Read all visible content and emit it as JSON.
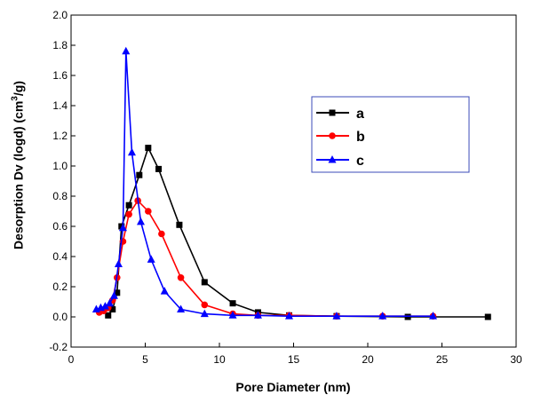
{
  "chart_data": {
    "type": "line",
    "xlabel": "Pore Diameter (nm)",
    "ylabel": {
      "main": "Desorption Dv (logd)  (cm",
      "sup": "3",
      "end": "/g)"
    },
    "xlim": [
      0,
      30
    ],
    "ylim": [
      -0.2,
      2.0
    ],
    "xticks": [
      0,
      5,
      10,
      15,
      20,
      25,
      30
    ],
    "yticks": [
      -0.2,
      0.0,
      0.2,
      0.4,
      0.6,
      0.8,
      1.0,
      1.2,
      1.4,
      1.6,
      1.8,
      2.0
    ],
    "xtick_labels": [
      "0",
      "5",
      "10",
      "15",
      "20",
      "25",
      "30"
    ],
    "ytick_labels": [
      "-0.2",
      "0.0",
      "0.2",
      "0.4",
      "0.6",
      "0.8",
      "1.0",
      "1.2",
      "1.4",
      "1.6",
      "1.8",
      "2.0"
    ],
    "grid": false,
    "legend_position": "upper-right",
    "series": [
      {
        "name": "a",
        "color": "#000000",
        "marker": "square",
        "points": [
          [
            2.5,
            0.01
          ],
          [
            2.8,
            0.05
          ],
          [
            3.1,
            0.16
          ],
          [
            3.4,
            0.6
          ],
          [
            3.9,
            0.74
          ],
          [
            4.6,
            0.94
          ],
          [
            5.2,
            1.12
          ],
          [
            5.9,
            0.98
          ],
          [
            7.3,
            0.61
          ],
          [
            9.0,
            0.23
          ],
          [
            10.9,
            0.09
          ],
          [
            12.6,
            0.03
          ],
          [
            14.7,
            0.01
          ],
          [
            17.9,
            0.005
          ],
          [
            22.7,
            0.0
          ],
          [
            28.1,
            0.0
          ]
        ]
      },
      {
        "name": "b",
        "color": "#ff0000",
        "marker": "circle",
        "points": [
          [
            1.9,
            0.03
          ],
          [
            2.2,
            0.04
          ],
          [
            2.5,
            0.06
          ],
          [
            2.8,
            0.11
          ],
          [
            3.1,
            0.26
          ],
          [
            3.5,
            0.5
          ],
          [
            3.9,
            0.68
          ],
          [
            4.5,
            0.77
          ],
          [
            5.2,
            0.7
          ],
          [
            6.1,
            0.55
          ],
          [
            7.4,
            0.26
          ],
          [
            9.0,
            0.08
          ],
          [
            10.9,
            0.02
          ],
          [
            12.6,
            0.01
          ],
          [
            14.7,
            0.01
          ],
          [
            17.9,
            0.005
          ],
          [
            21.0,
            0.005
          ],
          [
            24.4,
            0.005
          ]
        ]
      },
      {
        "name": "c",
        "color": "#0000ff",
        "marker": "triangle",
        "points": [
          [
            1.7,
            0.05
          ],
          [
            2.0,
            0.06
          ],
          [
            2.3,
            0.07
          ],
          [
            2.6,
            0.09
          ],
          [
            2.9,
            0.14
          ],
          [
            3.2,
            0.35
          ],
          [
            3.5,
            0.59
          ],
          [
            3.7,
            1.76
          ],
          [
            4.1,
            1.09
          ],
          [
            4.7,
            0.63
          ],
          [
            5.4,
            0.38
          ],
          [
            6.3,
            0.17
          ],
          [
            7.4,
            0.05
          ],
          [
            9.0,
            0.02
          ],
          [
            10.9,
            0.01
          ],
          [
            12.6,
            0.01
          ],
          [
            14.7,
            0.005
          ],
          [
            17.9,
            0.005
          ],
          [
            21.0,
            0.005
          ],
          [
            24.4,
            0.005
          ]
        ]
      }
    ]
  }
}
